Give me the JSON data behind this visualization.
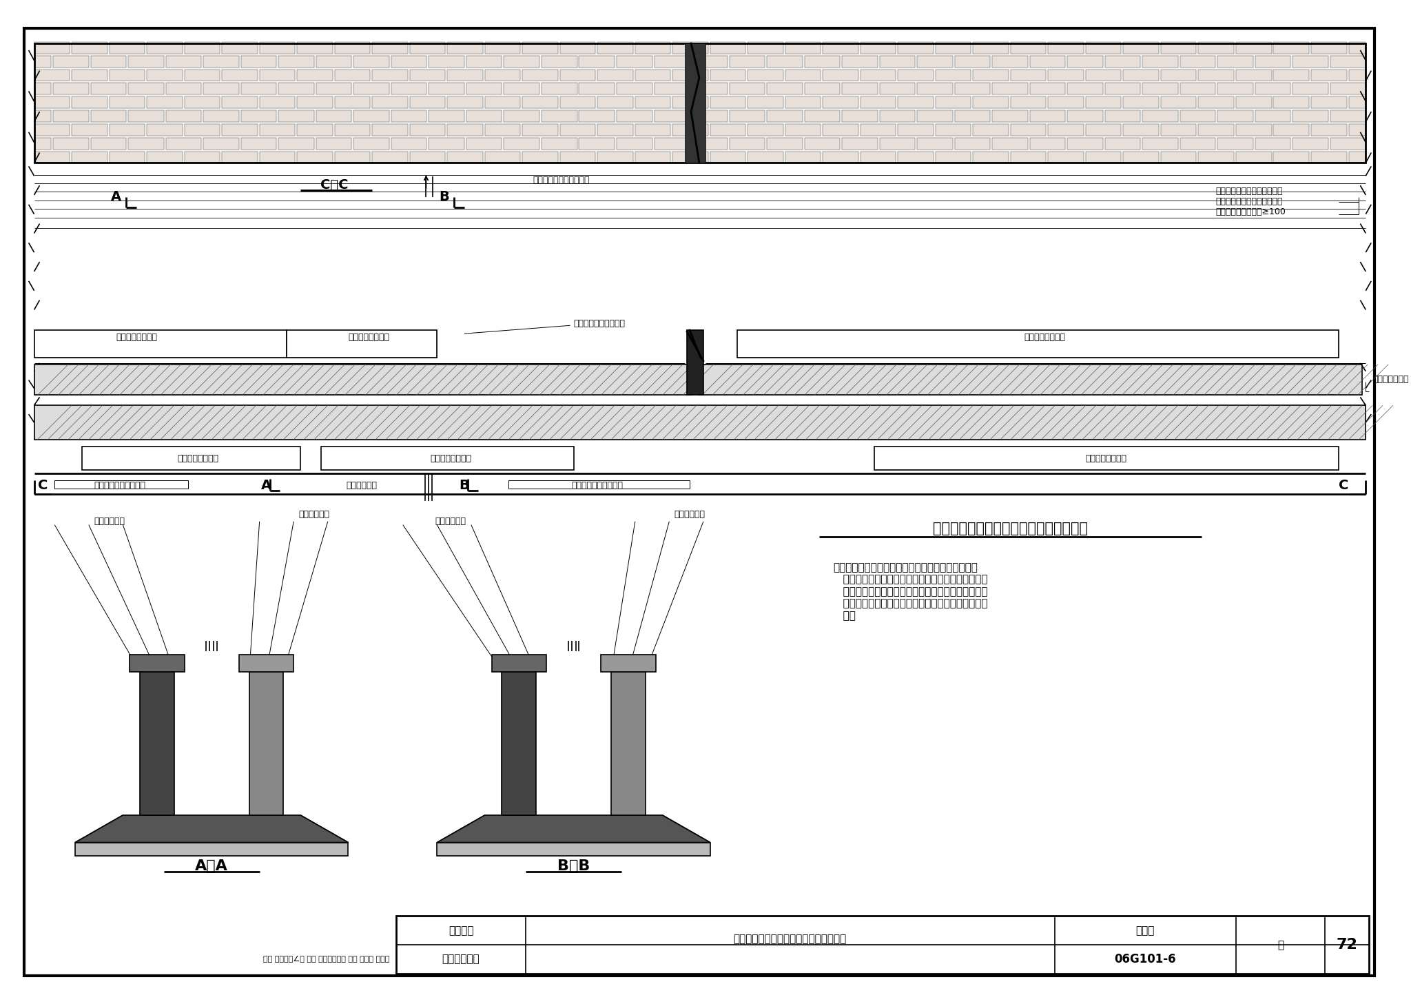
{
  "bg_color": "#ffffff",
  "title": "沉降缝两边墙下交错设置的条形基础构造",
  "catalog_num": "06G101-6",
  "page_num": "72",
  "note_title": "沉降缝两边墙下交错设置的条形基础构造",
  "note_text": "注：基础沉降缝两边相互独立的两套结构在水平和垂\n   直方向均应有可满足各自沉降所需要的空间。地下框\n   架梁下的回填材料详见具体工程的设计说明，当设计\n   未说明时，梁下应填炉渣、粗石等松散、可压缩的材\n   料。",
  "labels": {
    "jiegou_yi_jichulian": "结构乙的基础连梁",
    "jiegou_yi_fenjie": "结构乙的分段条形基础",
    "jiegou_jia_jichulian": "结构甲的基础连梁",
    "jiegou_jia_fenjie": "结构甲的分段条形基础",
    "jiaocuo_jichu_jiange": "交错基础间隔",
    "fenjie_jiaocuo_jiange": "分段交错的条形基础间隔",
    "jichu_chenjian_kuandu": "基础沉降缝宽度",
    "jiegou_yi_gou_jian": "结构乙的构件",
    "jiegou_jia_gou_jian": "结构甲的构件",
    "section_AA": "A－A",
    "section_BB": "B－B",
    "jichulian_note": "结构甲（乙）的基础连梁底面\n与结构乙（甲）的基础顶面间\n隔应满足实际要求且≥100"
  }
}
